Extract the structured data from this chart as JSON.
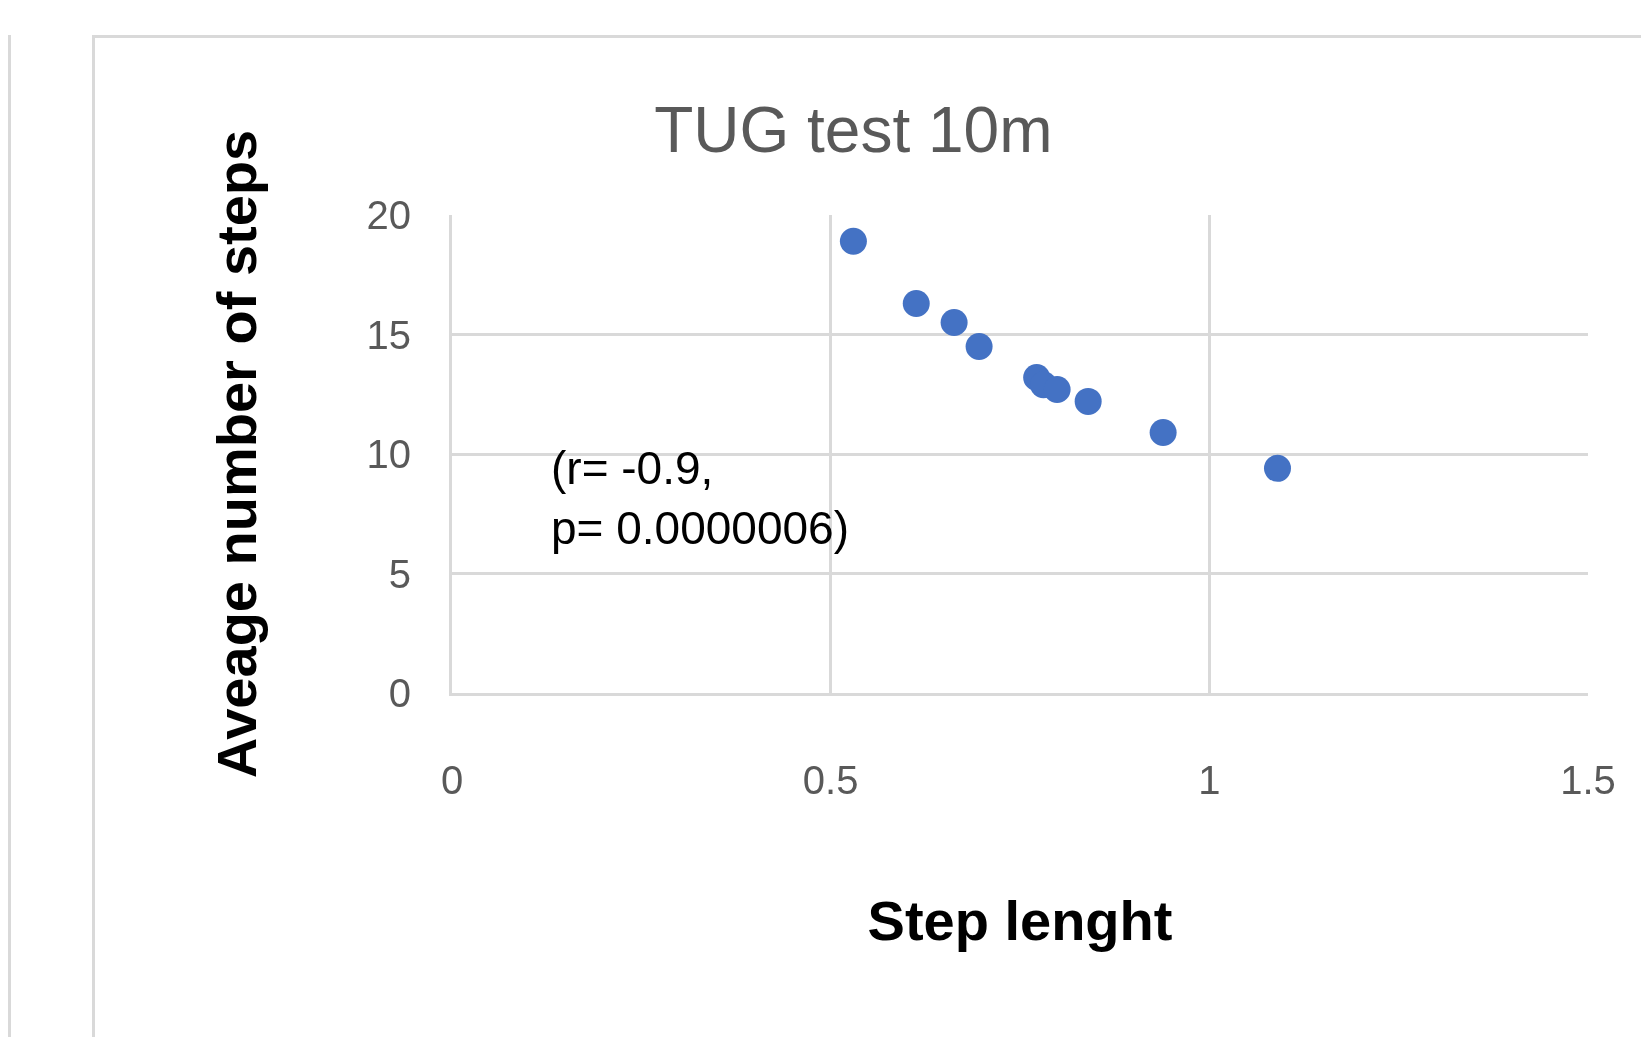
{
  "chart_data": {
    "type": "scatter",
    "title": "TUG test 10m",
    "xlabel": "Step lenght",
    "ylabel": "Aveage number of steps",
    "x": [
      0.53,
      0.613,
      0.663,
      0.696,
      0.772,
      0.781,
      0.799,
      0.84,
      0.939,
      1.09
    ],
    "values": [
      18.9,
      16.3,
      15.5,
      14.5,
      13.2,
      12.9,
      12.7,
      12.2,
      10.9,
      9.4
    ],
    "color": "#4472c4",
    "marker": "circle",
    "xlim": [
      0,
      1.5
    ],
    "xticks": [
      0,
      0.5,
      1,
      1.5
    ],
    "ylim": [
      0,
      20
    ],
    "yticks": [
      0,
      5,
      10,
      15,
      20
    ],
    "grid": true,
    "annotations": [
      "(r= -0.9,\np= 0.0000006)"
    ]
  }
}
